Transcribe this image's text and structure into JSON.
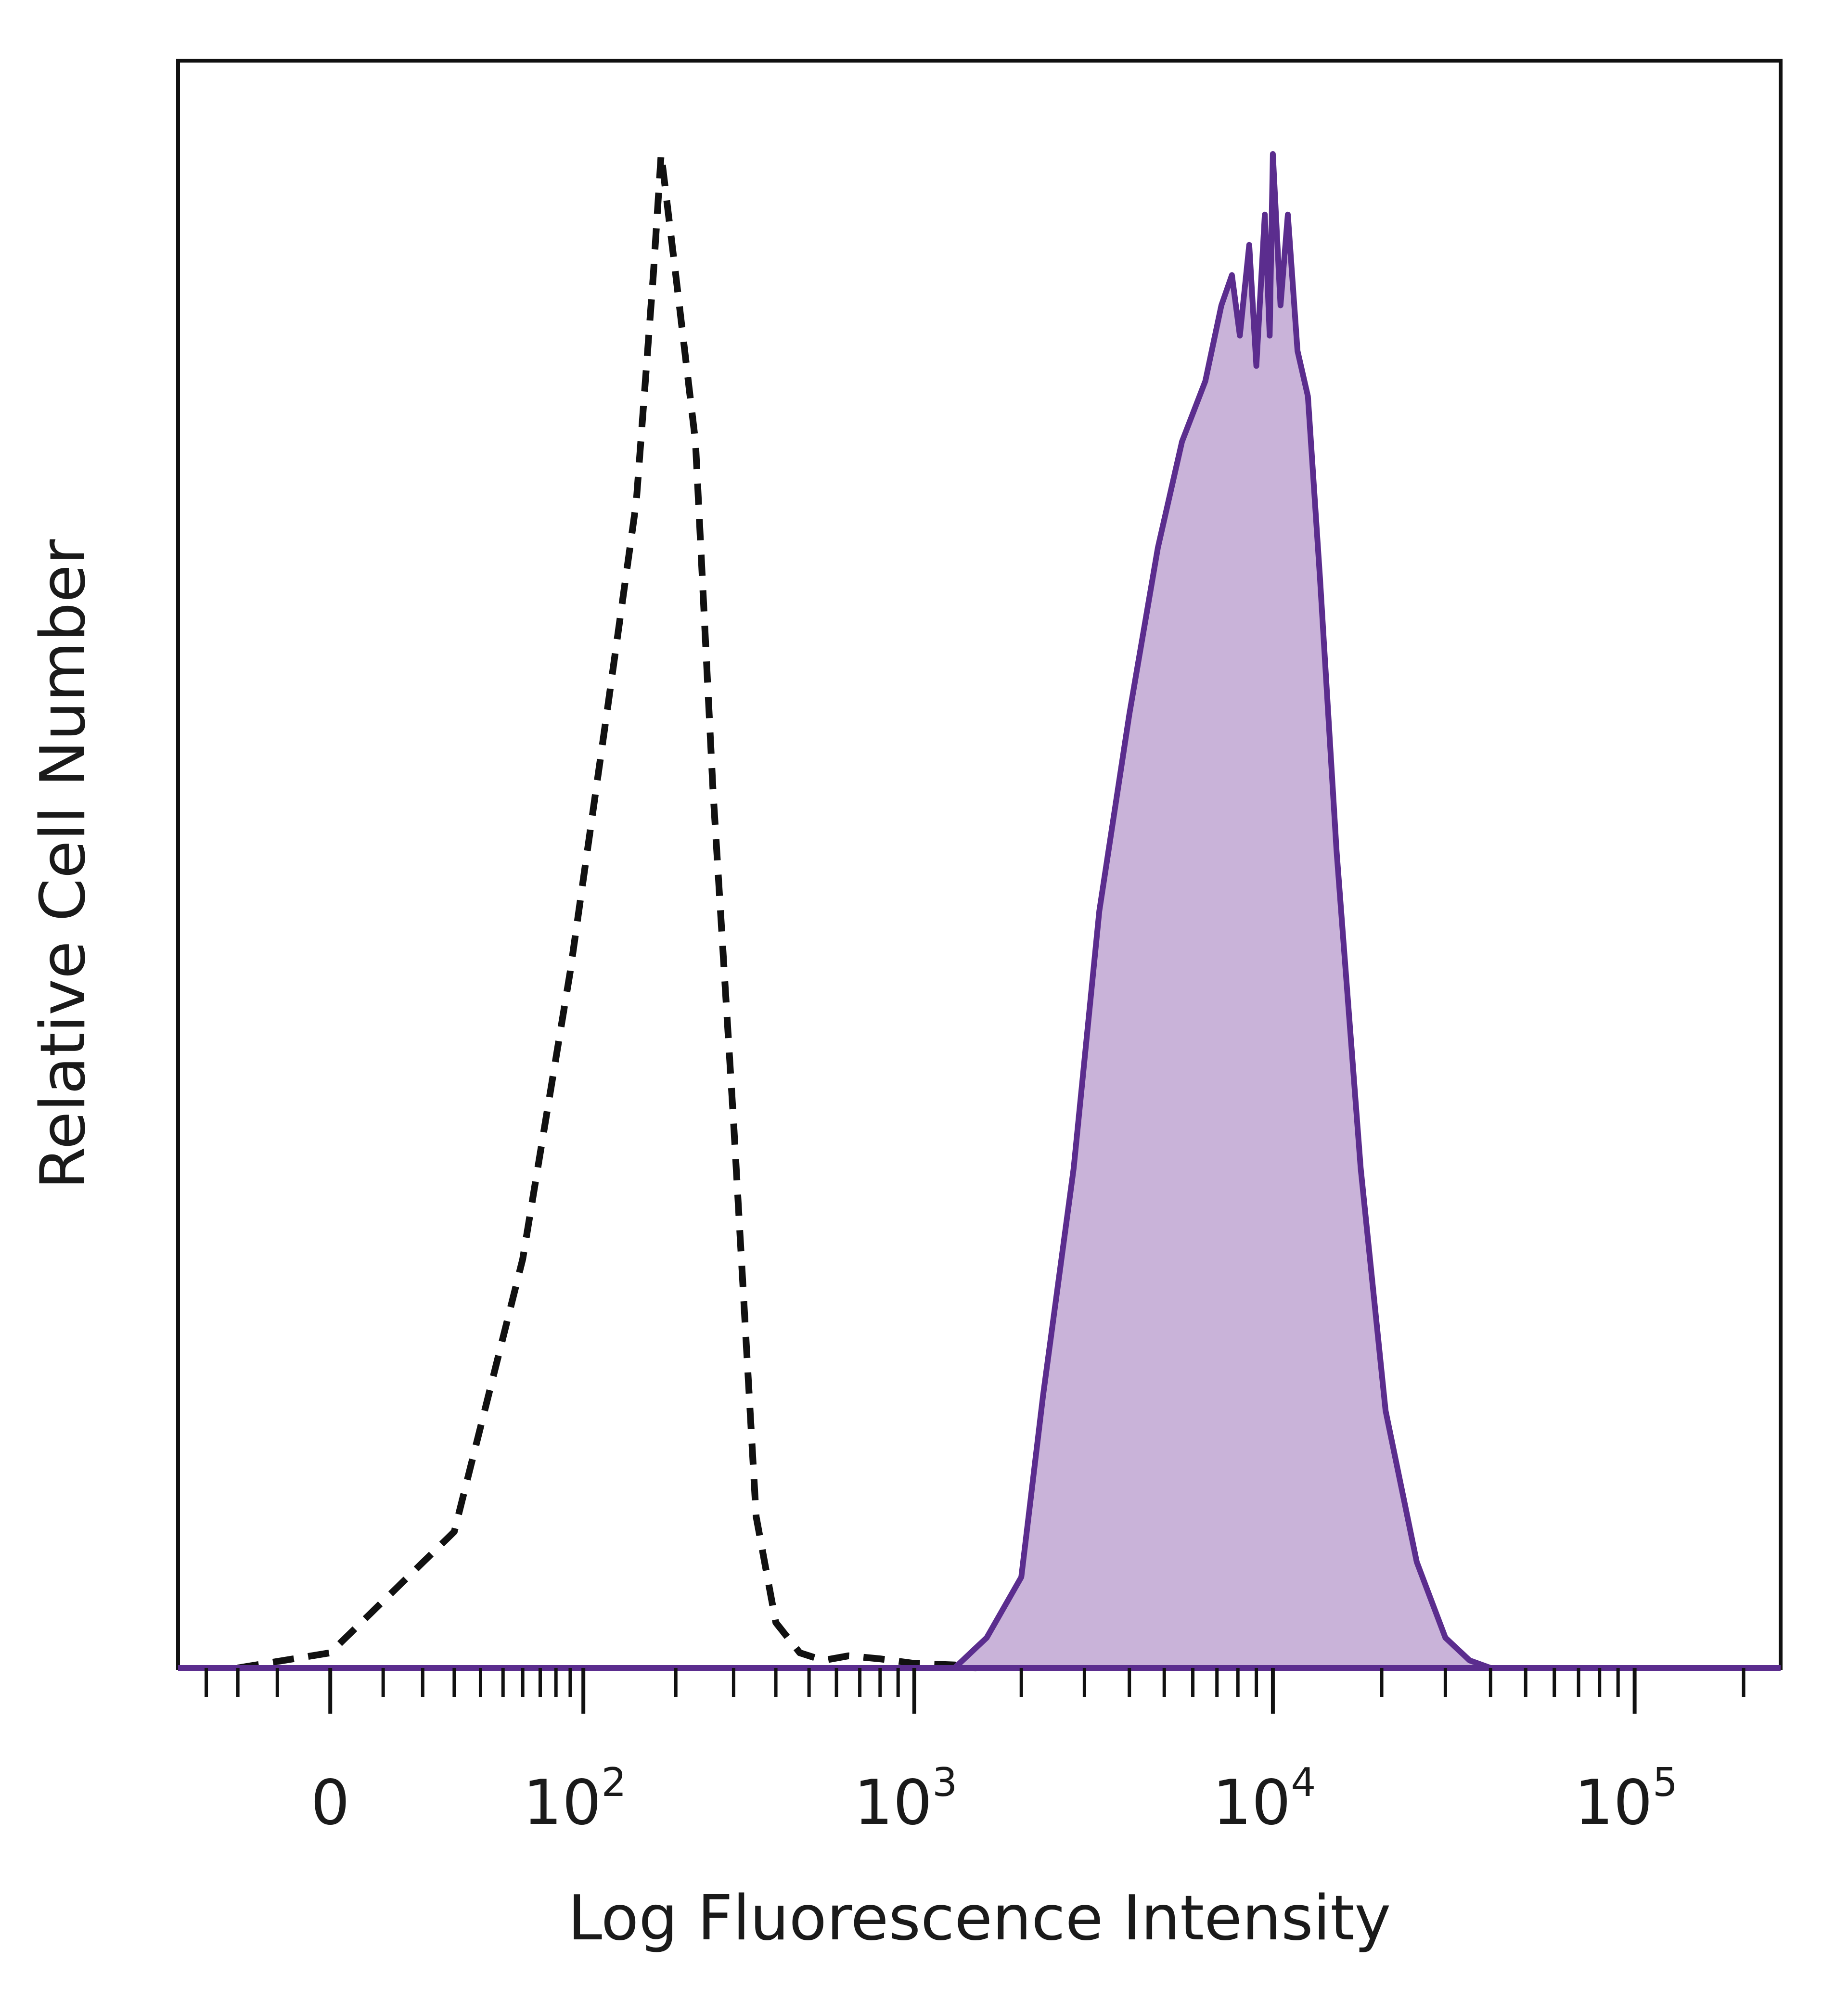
{
  "chart_data": {
    "type": "area",
    "title": "",
    "xlabel": "Log Fluorescence Intensity",
    "ylabel": "Relative Cell Number",
    "x_scale": "biexponential",
    "xlim": [
      -40,
      250000
    ],
    "ylim": [
      0,
      100
    ],
    "x_ticks": [
      {
        "value": 0,
        "base": "0",
        "exp": ""
      },
      {
        "value": 100,
        "base": "10",
        "exp": "2"
      },
      {
        "value": 1000,
        "base": "10",
        "exp": "3"
      },
      {
        "value": 10000,
        "base": "10",
        "exp": "4"
      },
      {
        "value": 100000,
        "base": "10",
        "exp": "5"
      }
    ],
    "grid": false,
    "legend": "none",
    "series": [
      {
        "style": "dashed",
        "color": "#111111",
        "fill": "none",
        "x": [
          -20,
          0,
          30,
          60,
          90,
          120,
          150,
          170,
          180,
          200,
          230,
          260,
          300,
          350,
          400,
          470,
          550,
          650,
          800,
          1000,
          1300,
          1500
        ],
        "y": [
          0,
          1,
          9,
          27,
          46,
          63,
          77,
          92,
          100,
          92,
          81,
          58,
          36,
          10,
          3,
          1,
          0.5,
          0.8,
          0.6,
          0.3,
          0.2,
          0
        ]
      },
      {
        "style": "solid",
        "color": "#5b2d8e",
        "fill": "#c9b3d9",
        "x": [
          1300,
          1600,
          2000,
          2300,
          2800,
          3300,
          4000,
          4800,
          5600,
          6500,
          7200,
          7700,
          8100,
          8600,
          9000,
          9500,
          9800,
          10000,
          10500,
          11000,
          11700,
          12500,
          13500,
          15000,
          17500,
          20500,
          25000,
          30000,
          35000,
          40000
        ],
        "y": [
          0,
          2,
          6,
          18,
          33,
          50,
          63,
          74,
          81,
          85,
          90,
          92,
          88,
          94,
          86,
          96,
          88,
          100,
          90,
          96,
          87,
          84,
          72,
          54,
          33,
          17,
          7,
          2,
          0.5,
          0
        ]
      }
    ]
  }
}
